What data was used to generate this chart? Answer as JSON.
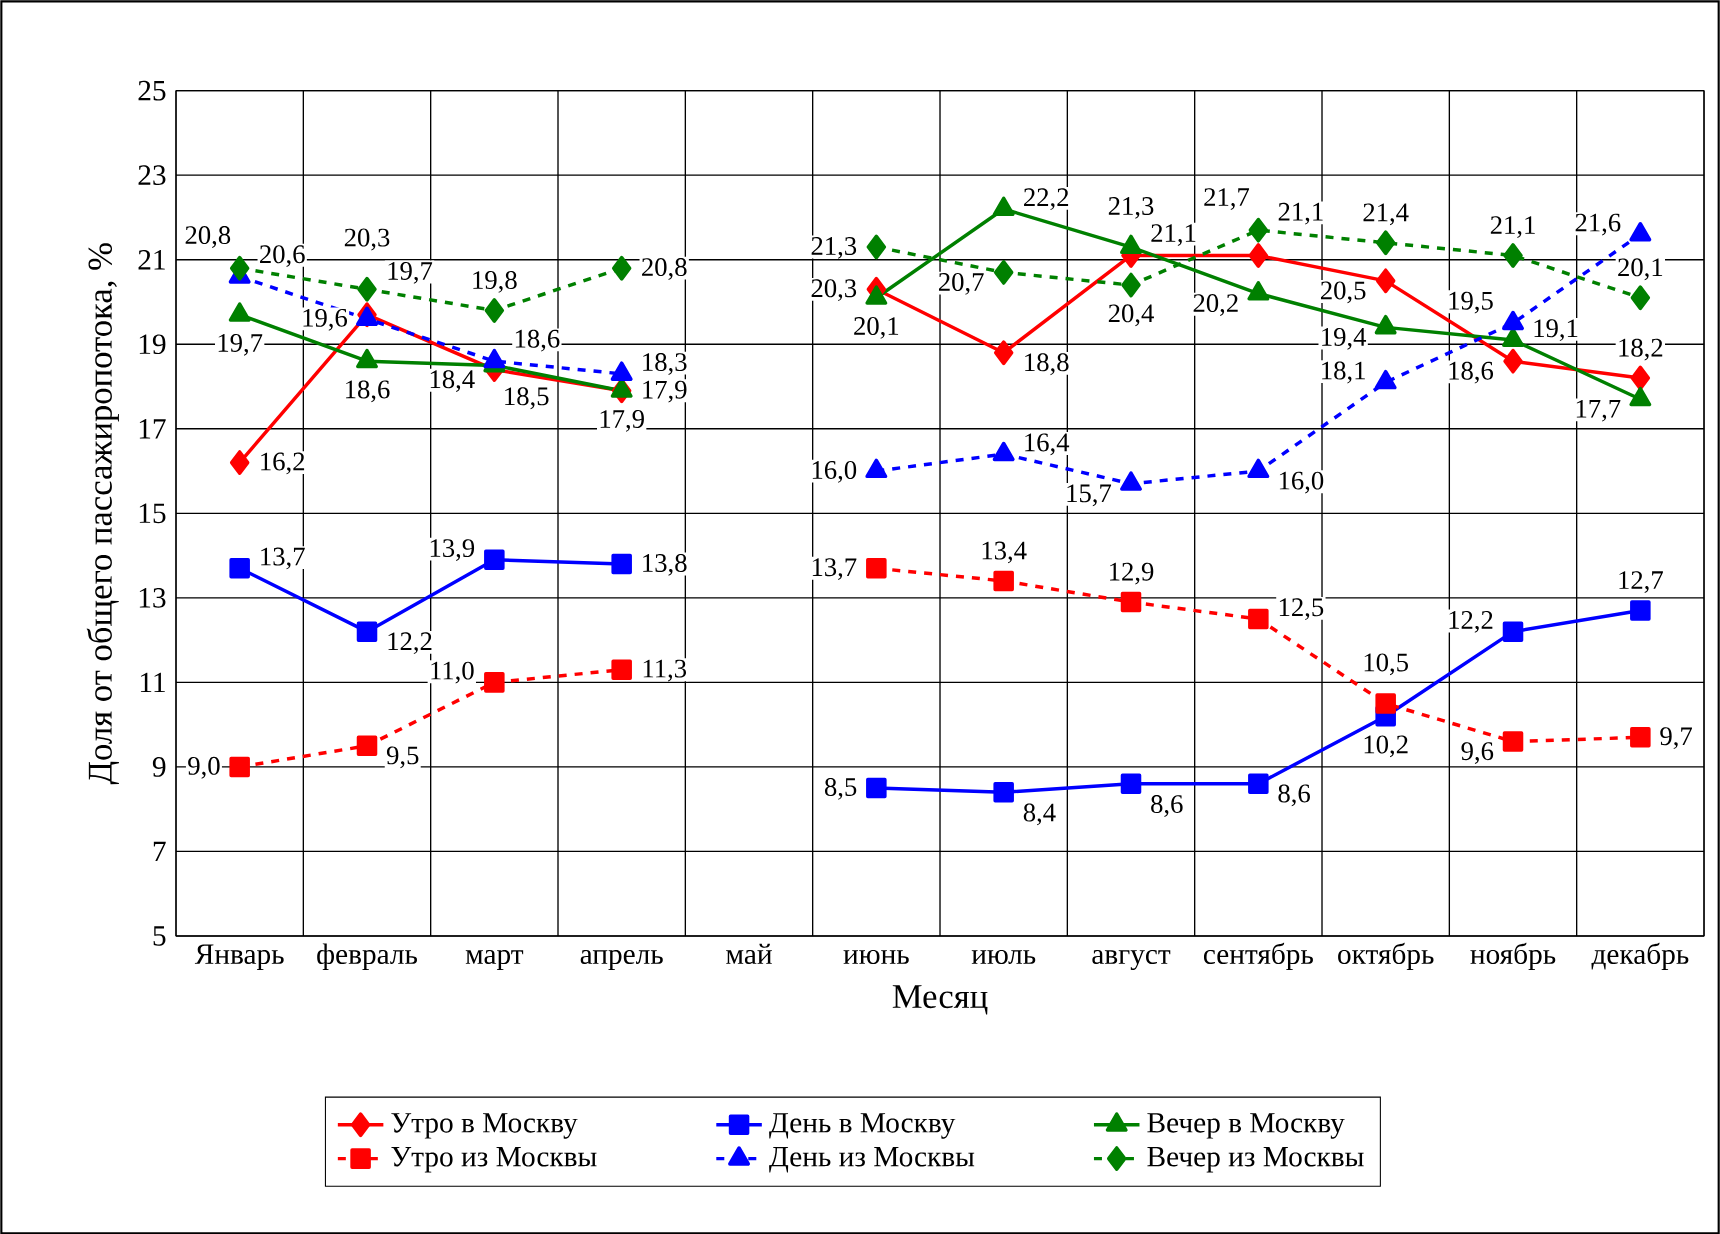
{
  "chart_data": {
    "type": "line",
    "xlabel": "Месяц",
    "ylabel": "Доля от общего пассажиропотока, %",
    "categories": [
      "Январь",
      "февраль",
      "март",
      "апрель",
      "май",
      "июнь",
      "июль",
      "август",
      "сентябрь",
      "октябрь",
      "ноябрь",
      "декабрь"
    ],
    "ylim": [
      5,
      25
    ],
    "yticks": [
      5,
      7,
      9,
      11,
      13,
      15,
      17,
      19,
      21,
      23,
      25
    ],
    "grid": true,
    "legend": "bottom",
    "series": [
      {
        "name": "Утро в Москву",
        "color": "#ff0000",
        "marker": "diamond",
        "line_style": "solid",
        "values": [
          16.2,
          19.7,
          18.4,
          17.9,
          null,
          20.3,
          18.8,
          21.1,
          21.1,
          20.5,
          18.6,
          18.2
        ],
        "value_labels": [
          "16,2",
          "19,7",
          "18,4",
          "17,9",
          null,
          "20,3",
          "18,8",
          "21,1",
          "21,1",
          "20,5",
          "18,6",
          "18,2"
        ]
      },
      {
        "name": "День в Москву",
        "color": "#0000ff",
        "marker": "square",
        "line_style": "solid",
        "values": [
          13.7,
          12.2,
          13.9,
          13.8,
          null,
          8.5,
          8.4,
          8.6,
          8.6,
          10.2,
          12.2,
          12.7
        ],
        "value_labels": [
          "13,7",
          "12,2",
          "13,9",
          "13,8",
          null,
          "8,5",
          "8,4",
          "8,6",
          "8,6",
          "10,2",
          "12,2",
          "12,7"
        ]
      },
      {
        "name": "Вечер в Москву",
        "color": "#008000",
        "marker": "triangle",
        "line_style": "solid",
        "values": [
          19.7,
          18.6,
          18.5,
          17.9,
          null,
          20.1,
          22.2,
          21.3,
          20.2,
          19.4,
          19.1,
          17.7
        ],
        "value_labels": [
          "19,7",
          "18,6",
          "18,5",
          "17,9",
          null,
          "20,1",
          "22,2",
          "21,3",
          "20,2",
          "19,4",
          "19,1",
          "17,7"
        ]
      },
      {
        "name": "Утро из Москвы",
        "color": "#ff0000",
        "marker": "square",
        "line_style": "dashed",
        "values": [
          9.0,
          9.5,
          11.0,
          11.3,
          null,
          13.7,
          13.4,
          12.9,
          12.5,
          10.5,
          9.6,
          9.7
        ],
        "value_labels": [
          "9,0",
          "9,5",
          "11,0",
          "11,3",
          null,
          "13,7",
          "13,4",
          "12,9",
          "12,5",
          "10,5",
          "9,6",
          "9,7"
        ]
      },
      {
        "name": "День из Москвы",
        "color": "#0000ff",
        "marker": "triangle",
        "line_style": "dashed",
        "values": [
          20.6,
          19.6,
          18.6,
          18.3,
          null,
          16.0,
          16.4,
          15.7,
          16.0,
          18.1,
          19.5,
          21.6
        ],
        "value_labels": [
          "20,6",
          "19,6",
          "18,6",
          "18,3",
          null,
          "16,0",
          "16,4",
          "15,7",
          "16,0",
          "18,1",
          "19,5",
          "21,6"
        ]
      },
      {
        "name": "Вечер из Москвы",
        "color": "#008000",
        "marker": "diamond",
        "line_style": "dashed",
        "values": [
          20.8,
          20.3,
          19.8,
          20.8,
          null,
          21.3,
          20.7,
          20.4,
          21.7,
          21.4,
          21.1,
          20.1
        ],
        "value_labels": [
          "20,8",
          "20,3",
          "19,8",
          "20,8",
          null,
          "21,3",
          "20,7",
          "20,4",
          "21,7",
          "21,4",
          "21,1",
          "20,1"
        ]
      }
    ]
  }
}
